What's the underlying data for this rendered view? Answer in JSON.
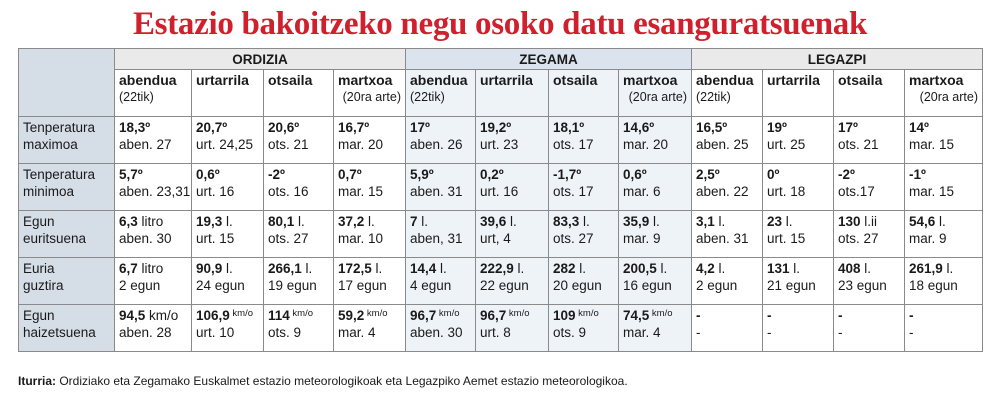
{
  "title": "Estazio bakoitzeko negu osoko datu esanguratsuenak",
  "stations": [
    "ORDIZIA",
    "ZEGAMA",
    "LEGAZPI"
  ],
  "months": [
    {
      "name": "abendua",
      "note": "(22tik)",
      "note_align": "left"
    },
    {
      "name": "urtarrila",
      "note": "",
      "note_align": "left"
    },
    {
      "name": "otsaila",
      "note": "",
      "note_align": "left"
    },
    {
      "name": "martxoa",
      "note": "(20ra arte)",
      "note_align": "right"
    }
  ],
  "rows": [
    {
      "label": [
        "Tenperatura",
        "maximoa"
      ],
      "cells": [
        {
          "v": "18,3º",
          "u": "",
          "d": "aben. 27"
        },
        {
          "v": "20,7º",
          "u": "",
          "d": "urt. 24,25"
        },
        {
          "v": "20,6º",
          "u": "",
          "d": "ots. 21"
        },
        {
          "v": "16,7º",
          "u": "",
          "d": "mar. 20"
        },
        {
          "v": "17º",
          "u": "",
          "d": "aben. 26"
        },
        {
          "v": "19,2º",
          "u": "",
          "d": "urt. 23"
        },
        {
          "v": "18,1º",
          "u": "",
          "d": "ots. 17"
        },
        {
          "v": "14,6º",
          "u": "",
          "d": "mar. 20"
        },
        {
          "v": "16,5º",
          "u": "",
          "d": "aben. 25"
        },
        {
          "v": "19º",
          "u": "",
          "d": "urt. 25"
        },
        {
          "v": "17º",
          "u": "",
          "d": "ots. 21"
        },
        {
          "v": "14º",
          "u": "",
          "d": "mar. 15"
        }
      ]
    },
    {
      "label": [
        "Tenperatura",
        "minimoa"
      ],
      "cells": [
        {
          "v": "5,7º",
          "u": "",
          "d": "aben. 23,31"
        },
        {
          "v": "0,6º",
          "u": "",
          "d": "urt. 16"
        },
        {
          "v": "-2º",
          "u": "",
          "d": "ots. 16"
        },
        {
          "v": "0,7º",
          "u": "",
          "d": "mar. 15"
        },
        {
          "v": "5,9º",
          "u": "",
          "d": "aben. 31"
        },
        {
          "v": "0,2º",
          "u": "",
          "d": "urt. 16"
        },
        {
          "v": "-1,7º",
          "u": "",
          "d": "ots. 17"
        },
        {
          "v": "0,6º",
          "u": "",
          "d": "mar. 6"
        },
        {
          "v": "2,5º",
          "u": "",
          "d": "aben. 22"
        },
        {
          "v": "0º",
          "u": "",
          "d": "urt. 18"
        },
        {
          "v": "-2º",
          "u": "",
          "d": "ots.17"
        },
        {
          "v": "-1º",
          "u": "",
          "d": "mar. 15"
        }
      ]
    },
    {
      "label": [
        "Egun",
        "euritsuena"
      ],
      "cells": [
        {
          "v": "6,3",
          "u": " litro",
          "d": "aben. 30"
        },
        {
          "v": "19,3",
          "u": " l.",
          "d": "urt. 15"
        },
        {
          "v": "80,1",
          "u": " l.",
          "d": "ots. 27"
        },
        {
          "v": "37,2",
          "u": " l.",
          "d": "mar. 10"
        },
        {
          "v": "7",
          "u": " l.",
          "d": "aben, 31"
        },
        {
          "v": "39,6",
          "u": " l.",
          "d": "urt, 4"
        },
        {
          "v": "83,3",
          "u": " l.",
          "d": "ots. 27"
        },
        {
          "v": "35,9",
          "u": " l.",
          "d": "mar. 9"
        },
        {
          "v": "3,1",
          "u": " l.",
          "d": "aben. 31"
        },
        {
          "v": "23",
          "u": " l.",
          "d": "urt. 15"
        },
        {
          "v": "130",
          "u": " l.ii",
          "d": "ots. 27"
        },
        {
          "v": "54,6",
          "u": " l.",
          "d": "mar. 9"
        }
      ]
    },
    {
      "label": [
        "Euria",
        "guztira"
      ],
      "cells": [
        {
          "v": "6,7",
          "u": " litro",
          "d": "2 egun"
        },
        {
          "v": "90,9",
          "u": " l.",
          "d": "24 egun"
        },
        {
          "v": "266,1",
          "u": " l.",
          "d": "19 egun"
        },
        {
          "v": "172,5",
          "u": " l.",
          "d": "17 egun"
        },
        {
          "v": "14,4",
          "u": " l.",
          "d": "4 egun"
        },
        {
          "v": "222,9",
          "u": " l.",
          "d": "22 egun"
        },
        {
          "v": "282",
          "u": " l.",
          "d": "20 egun"
        },
        {
          "v": "200,5",
          "u": " l.",
          "d": "16 egun"
        },
        {
          "v": "4,2",
          "u": " l.",
          "d": "2 egun"
        },
        {
          "v": "131",
          "u": " l.",
          "d": "21 egun"
        },
        {
          "v": "408",
          "u": " l.",
          "d": "23 egun"
        },
        {
          "v": "261,9",
          "u": " l.",
          "d": "18 egun"
        }
      ]
    },
    {
      "label": [
        "Egun",
        "haizetsuena"
      ],
      "cells": [
        {
          "v": "94,5",
          "u": " km/o",
          "small": false,
          "d": "aben. 28"
        },
        {
          "v": "106,9",
          "u": " km/o",
          "small": true,
          "d": "urt. 10"
        },
        {
          "v": "114",
          "u": " km/o",
          "small": true,
          "d": "ots. 9"
        },
        {
          "v": "59,2",
          "u": " km/o",
          "small": true,
          "d": "mar. 4"
        },
        {
          "v": "96,7",
          "u": " km/o",
          "small": true,
          "d": "aben. 30"
        },
        {
          "v": "96,7",
          "u": " km/o",
          "small": true,
          "d": "urt. 8"
        },
        {
          "v": "109",
          "u": " km/o",
          "small": true,
          "d": "ots. 9"
        },
        {
          "v": "74,5",
          "u": " km/o",
          "small": true,
          "d": "mar. 4"
        },
        {
          "v": "-",
          "u": "",
          "d": "-"
        },
        {
          "v": "-",
          "u": "",
          "d": "-"
        },
        {
          "v": "-",
          "u": "",
          "d": "-"
        },
        {
          "v": "-",
          "u": "",
          "d": "-"
        }
      ]
    }
  ],
  "source_label": "Iturria:",
  "source_text": " Ordiziako eta Zegamako Euskalmet estazio meteorologikoak eta Legazpiko Aemet estazio meteorologikoa."
}
